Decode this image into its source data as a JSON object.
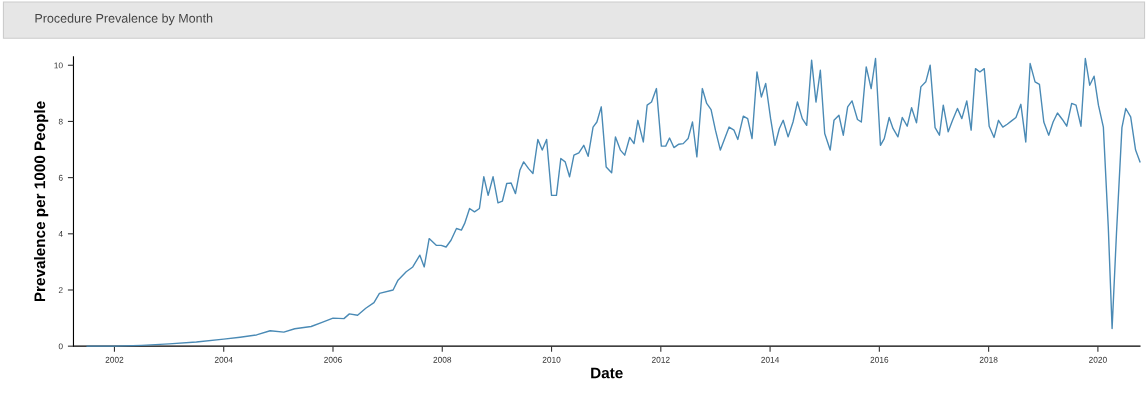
{
  "chart_data": {
    "type": "line",
    "title": "Procedure Prevalence by Month",
    "xlabel": "Date",
    "ylabel": "Prevalence per 1000 People",
    "x": [
      2001.5,
      2002.0,
      2002.5,
      2003.0,
      2003.5,
      2004.0,
      2004.3,
      2004.6,
      2004.85,
      2005.1,
      2005.3,
      2005.6,
      2005.8,
      2006.0,
      2006.2,
      2006.3,
      2006.45,
      2006.6,
      2006.75,
      2006.85,
      2007.1,
      2007.19,
      2007.34,
      2007.46,
      2007.59,
      2007.67,
      2007.76,
      2007.89,
      2007.98,
      2008.07,
      2008.16,
      2008.26,
      2008.35,
      2008.41,
      2008.5,
      2008.59,
      2008.68,
      2008.76,
      2008.84,
      2008.93,
      2009.02,
      2009.1,
      2009.18,
      2009.26,
      2009.34,
      2009.42,
      2009.49,
      2009.58,
      2009.66,
      2009.75,
      2009.83,
      2009.91,
      2010.0,
      2010.09,
      2010.17,
      2010.25,
      2010.33,
      2010.41,
      2010.5,
      2010.59,
      2010.67,
      2010.76,
      2010.83,
      2010.91,
      2011.0,
      2011.1,
      2011.17,
      2011.26,
      2011.34,
      2011.43,
      2011.51,
      2011.58,
      2011.68,
      2011.75,
      2011.83,
      2011.92,
      2012.01,
      2012.09,
      2012.16,
      2012.24,
      2012.33,
      2012.41,
      2012.5,
      2012.58,
      2012.66,
      2012.76,
      2012.84,
      2012.92,
      2013.0,
      2013.09,
      2013.17,
      2013.25,
      2013.34,
      2013.41,
      2013.51,
      2013.59,
      2013.67,
      2013.76,
      2013.84,
      2013.92,
      2014.01,
      2014.09,
      2014.17,
      2014.24,
      2014.33,
      2014.42,
      2014.5,
      2014.59,
      2014.67,
      2014.76,
      2014.84,
      2014.92,
      2015.0,
      2015.1,
      2015.17,
      2015.26,
      2015.34,
      2015.42,
      2015.5,
      2015.6,
      2015.67,
      2015.76,
      2015.85,
      2015.93,
      2016.02,
      2016.09,
      2016.18,
      2016.25,
      2016.34,
      2016.42,
      2016.51,
      2016.59,
      2016.68,
      2016.76,
      2016.85,
      2016.93,
      2017.02,
      2017.1,
      2017.17,
      2017.26,
      2017.34,
      2017.43,
      2017.51,
      2017.6,
      2017.68,
      2017.76,
      2017.84,
      2017.92,
      2018.01,
      2018.1,
      2018.18,
      2018.26,
      2018.34,
      2018.42,
      2018.5,
      2018.59,
      2018.68,
      2018.76,
      2018.85,
      2018.93,
      2019.01,
      2019.1,
      2019.18,
      2019.26,
      2019.35,
      2019.43,
      2019.52,
      2019.6,
      2019.69,
      2019.77,
      2019.85,
      2019.93,
      2020.01,
      2020.1,
      2020.19,
      2020.26,
      2020.34,
      2020.44,
      2020.51,
      2020.6,
      2020.69,
      2020.77
    ],
    "series": [
      {
        "color": "#4a8ab5",
        "values": [
          0.0,
          0.0,
          0.03,
          0.08,
          0.15,
          0.25,
          0.32,
          0.4,
          0.55,
          0.5,
          0.62,
          0.7,
          0.85,
          1.0,
          0.98,
          1.15,
          1.1,
          1.35,
          1.55,
          1.88,
          2.0,
          2.35,
          2.65,
          2.82,
          3.24,
          2.82,
          3.83,
          3.59,
          3.59,
          3.53,
          3.77,
          4.19,
          4.13,
          4.37,
          4.9,
          4.78,
          4.9,
          6.03,
          5.37,
          6.03,
          5.1,
          5.16,
          5.79,
          5.81,
          5.43,
          6.26,
          6.56,
          6.32,
          6.15,
          7.36,
          6.98,
          7.36,
          5.37,
          5.37,
          6.68,
          6.56,
          6.03,
          6.8,
          6.88,
          7.15,
          6.76,
          7.8,
          7.98,
          8.52,
          6.38,
          6.17,
          7.45,
          6.98,
          6.8,
          7.43,
          7.21,
          8.04,
          7.27,
          8.58,
          8.69,
          9.17,
          7.12,
          7.12,
          7.41,
          7.07,
          7.19,
          7.21,
          7.39,
          7.98,
          6.74,
          9.17,
          8.64,
          8.42,
          7.69,
          6.98,
          7.39,
          7.8,
          7.69,
          7.36,
          8.19,
          8.1,
          7.39,
          9.76,
          8.87,
          9.35,
          8.1,
          7.15,
          7.75,
          8.04,
          7.45,
          7.98,
          8.69,
          8.1,
          7.86,
          10.18,
          8.69,
          9.82,
          7.57,
          6.98,
          8.04,
          8.22,
          7.51,
          8.52,
          8.73,
          8.07,
          7.98,
          9.94,
          9.17,
          10.24,
          7.15,
          7.39,
          8.14,
          7.75,
          7.45,
          8.14,
          7.83,
          8.49,
          7.95,
          9.23,
          9.41,
          10.0,
          7.78,
          7.51,
          8.58,
          7.63,
          8.04,
          8.46,
          8.1,
          8.73,
          7.69,
          9.88,
          9.76,
          9.88,
          7.83,
          7.43,
          8.04,
          7.8,
          7.9,
          8.02,
          8.14,
          8.61,
          7.27,
          10.06,
          9.41,
          9.32,
          7.98,
          7.51,
          7.98,
          8.3,
          8.07,
          7.83,
          8.64,
          8.58,
          7.83,
          10.24,
          9.29,
          9.61,
          8.58,
          7.8,
          4.25,
          0.63,
          4.01,
          7.78,
          8.46,
          8.16,
          6.98,
          6.56
        ]
      }
    ],
    "xlim": [
      2001.25,
      2020.77
    ],
    "xticks": [
      2002,
      2004,
      2006,
      2008,
      2010,
      2012,
      2014,
      2016,
      2018,
      2020
    ],
    "ylim": [
      0,
      10.3
    ],
    "yticks": [
      0,
      2,
      4,
      6,
      8,
      10
    ],
    "grid": false,
    "legend": false
  }
}
